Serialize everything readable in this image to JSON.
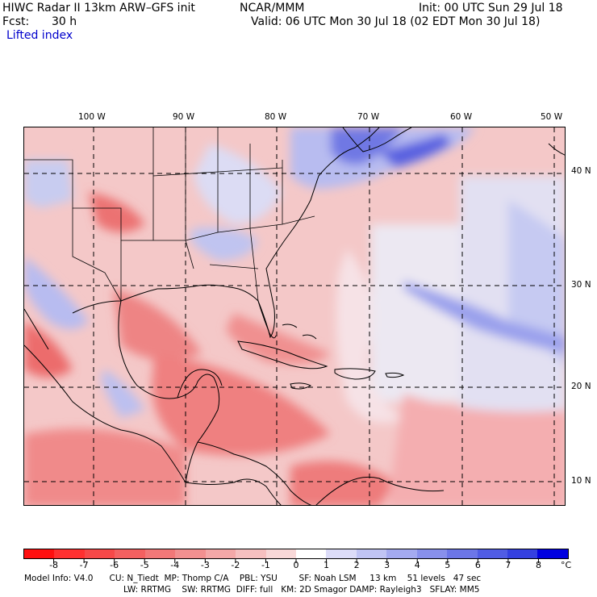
{
  "header": {
    "title": "HIWC Radar II 13km ARW–GFS init",
    "org": "NCAR/MMM",
    "init": "Init: 00 UTC Sun 29 Jul 18",
    "fcst_label": "Fcst:",
    "fcst_value": "30 h",
    "valid": "Valid: 06 UTC Mon 30 Jul 18 (02 EDT Mon 30 Jul 18)",
    "field": "Lifted index"
  },
  "map": {
    "lon_labels": [
      "100 W",
      "90 W",
      "80 W",
      "70 W",
      "60 W",
      "50 W"
    ],
    "lat_labels": [
      "40 N",
      "30 N",
      "20 N",
      "10 N"
    ],
    "colors": {
      "warm": "#f6b2b2",
      "warm_strong": "#ec6e6e",
      "cool": "#c8ccf4",
      "cool_strong": "#5a62e4",
      "neutral": "#f4eeee",
      "boundary": "#000000",
      "grid": "#000000"
    }
  },
  "colorbar": {
    "unit": "°C",
    "ticks": [
      "-8",
      "-7",
      "-6",
      "-5",
      "-4",
      "-3",
      "-2",
      "-1",
      "0",
      "1",
      "2",
      "3",
      "4",
      "5",
      "6",
      "7",
      "8"
    ],
    "colors": [
      "#ff1010",
      "#ff3030",
      "#f74848",
      "#f46060",
      "#f27878",
      "#f29090",
      "#f4a8a8",
      "#f6c0c0",
      "#f8d8d8",
      "#ffffff",
      "#dcdcf8",
      "#c0c4f4",
      "#a4aaf0",
      "#8890ec",
      "#6c76e8",
      "#505ce4",
      "#3440e0",
      "#0000e0"
    ]
  },
  "model_info": {
    "line1": "Model Info: V4.0      CU: N_Tiedt  MP: Thomp C/A    PBL: YSU        SF: Noah LSM     13 km    51 levels   47 sec",
    "line2": "LW: RRTMG    SW: RRTMG  DIFF: full   KM: 2D Smagor DAMP: Rayleigh3   SFLAY: MM5"
  }
}
